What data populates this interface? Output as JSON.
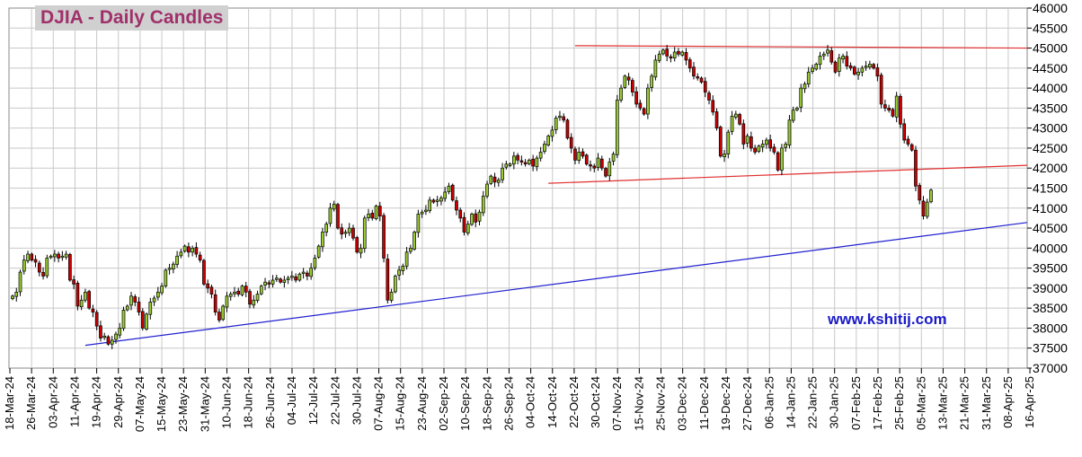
{
  "chart_data": {
    "type": "candlestick",
    "title": "DJIA - Daily Candles",
    "watermark": "www.kshitij.com",
    "x_tick_labels": [
      "18-Mar-24",
      "26-Mar-24",
      "03-Apr-24",
      "11-Apr-24",
      "19-Apr-24",
      "29-Apr-24",
      "07-May-24",
      "15-May-24",
      "23-May-24",
      "31-May-24",
      "10-Jun-24",
      "18-Jun-24",
      "26-Jun-24",
      "04-Jul-24",
      "12-Jul-24",
      "22-Jul-24",
      "30-Jul-24",
      "07-Aug-24",
      "15-Aug-24",
      "23-Aug-24",
      "02-Sep-24",
      "10-Sep-24",
      "18-Sep-24",
      "26-Sep-24",
      "04-Oct-24",
      "14-Oct-24",
      "22-Oct-24",
      "30-Oct-24",
      "07-Nov-24",
      "15-Nov-24",
      "25-Nov-24",
      "03-Dec-24",
      "11-Dec-24",
      "19-Dec-24",
      "27-Dec-24",
      "06-Jan-25",
      "14-Jan-25",
      "22-Jan-25",
      "30-Jan-25",
      "07-Feb-25",
      "17-Feb-25",
      "25-Feb-25",
      "05-Mar-25",
      "13-Mar-25",
      "21-Mar-25",
      "31-Mar-25",
      "08-Apr-25",
      "16-Apr-25"
    ],
    "y_tick_labels": [
      "37000",
      "37500",
      "38000",
      "38500",
      "39000",
      "39500",
      "40000",
      "40500",
      "41000",
      "41500",
      "42000",
      "42500",
      "43000",
      "43500",
      "44000",
      "44500",
      "45000",
      "45500",
      "46000"
    ],
    "ylim": [
      37000,
      46000
    ],
    "grid": true,
    "colors": {
      "up": "#9acd32",
      "down": "#cc0000",
      "outline": "#000000",
      "resistance": "#e03030",
      "support": "#2020d0",
      "title": "#a0306a",
      "title_bg": "#d0d0d0",
      "grid": "#c8c8c8",
      "watermark": "#1a1ac8"
    },
    "closes": [
      38800,
      38900,
      39400,
      39700,
      39850,
      39700,
      39650,
      39400,
      39300,
      39750,
      39800,
      39850,
      39750,
      39800,
      39850,
      39200,
      39100,
      38550,
      38700,
      38900,
      38500,
      38400,
      38050,
      37750,
      37800,
      37600,
      37700,
      37850,
      38000,
      38450,
      38550,
      38800,
      38650,
      38400,
      38000,
      38350,
      38650,
      38750,
      38900,
      39050,
      39450,
      39500,
      39600,
      39800,
      39900,
      40050,
      39900,
      40000,
      39850,
      39700,
      39100,
      39000,
      38850,
      38400,
      38200,
      38550,
      38800,
      38850,
      38900,
      38850,
      39050,
      38900,
      38600,
      38700,
      38850,
      39050,
      39150,
      39100,
      39200,
      39250,
      39150,
      39200,
      39250,
      39300,
      39200,
      39350,
      39400,
      39300,
      39500,
      39750,
      40050,
      40400,
      40600,
      41000,
      41100,
      40500,
      40350,
      40400,
      40500,
      40250,
      39900,
      40000,
      40750,
      40850,
      40750,
      41050,
      40800,
      39750,
      38700,
      38900,
      39300,
      39450,
      39550,
      39900,
      40000,
      40400,
      40850,
      40900,
      40950,
      41200,
      41150,
      41200,
      41250,
      41400,
      41550,
      41200,
      40950,
      40750,
      40400,
      40600,
      40850,
      40650,
      40900,
      41300,
      41600,
      41800,
      41650,
      41700,
      42000,
      42100,
      42100,
      42300,
      42200,
      42150,
      42100,
      42200,
      42050,
      42250,
      42400,
      42600,
      42800,
      42950,
      43250,
      43300,
      43200,
      42750,
      42500,
      42200,
      42400,
      42300,
      42100,
      42050,
      42000,
      42250,
      42000,
      41800,
      42150,
      42350,
      43700,
      44000,
      44300,
      44200,
      43900,
      43600,
      43500,
      43350,
      44000,
      44300,
      44700,
      44850,
      44950,
      44800,
      44750,
      44900,
      44850,
      44900,
      44700,
      44500,
      44300,
      44250,
      44150,
      43900,
      43700,
      43400,
      43000,
      42300,
      42350,
      42900,
      43300,
      43350,
      43100,
      42600,
      42800,
      42500,
      42400,
      42550,
      42600,
      42700,
      42500,
      42400,
      41950,
      42500,
      42600,
      43200,
      43450,
      43500,
      44000,
      44100,
      44400,
      44500,
      44600,
      44800,
      44850,
      44950,
      44650,
      44400,
      44750,
      44800,
      44550,
      44500,
      44350,
      44400,
      44500,
      44550,
      44600,
      44500,
      44300,
      43600,
      43500,
      43450,
      43300,
      43800,
      43100,
      42700,
      42600,
      42450,
      41550,
      41200,
      40800,
      41150,
      41450
    ]
  }
}
